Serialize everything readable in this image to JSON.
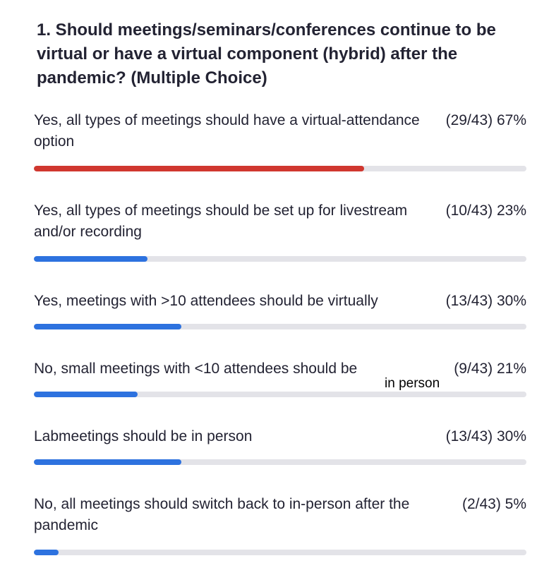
{
  "question": {
    "title": "1. Should meetings/seminars/conferences continue to be virtual or have a virtual component (hybrid) after the pandemic?  (Multiple Choice)"
  },
  "colors": {
    "highlight_bar": "#d0372f",
    "normal_bar": "#2d72df",
    "track": "#e3e3e8"
  },
  "options": [
    {
      "label": "Yes, all types of meetings should have a virtual-attendance option",
      "count": "(29/43) 67%",
      "fraction": 0.67,
      "highlight": true
    },
    {
      "label": "Yes, all types of meetings should be set up for livestream and/or recording",
      "count": "(10/43) 23%",
      "fraction": 0.23,
      "highlight": false
    },
    {
      "label": "Yes, meetings with >10 attendees should be virtually",
      "count": "(13/43) 30%",
      "fraction": 0.3,
      "highlight": false
    },
    {
      "label": "No, small meetings with <10 attendees should be",
      "count": "(9/43) 21%",
      "fraction": 0.21,
      "highlight": false
    },
    {
      "label": "Labmeetings should be in person",
      "count": "(13/43) 30%",
      "fraction": 0.3,
      "highlight": false
    },
    {
      "label": "No, all meetings should switch back to in-person after the pandemic",
      "count": "(2/43) 5%",
      "fraction": 0.05,
      "highlight": false
    }
  ],
  "annotation": "in person"
}
